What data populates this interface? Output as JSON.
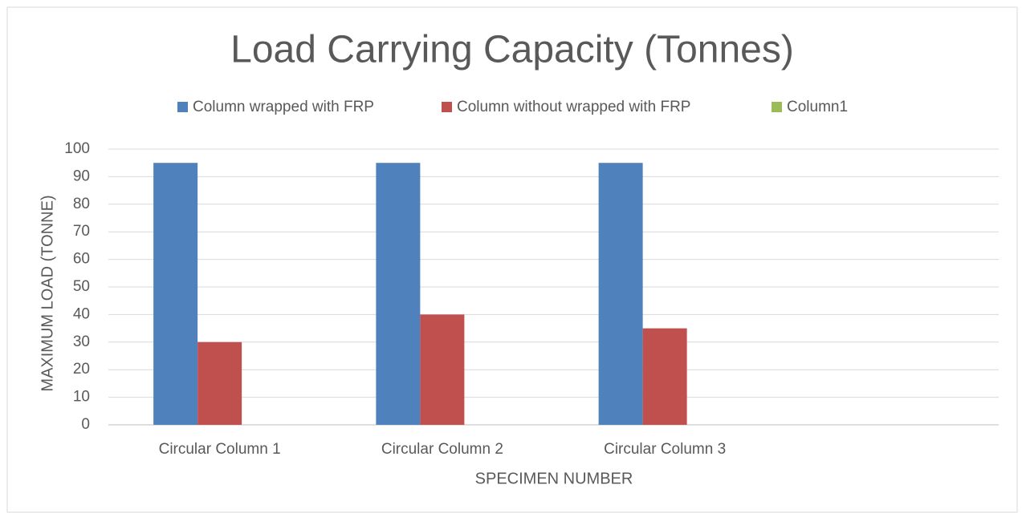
{
  "chart_data": {
    "type": "bar",
    "title": "Load Carrying Capacity (Tonnes)",
    "x_label": "SPECIMEN NUMBER",
    "y_label": "MAXIMUM LOAD (TONNE)",
    "categories": [
      "Circular Column 1",
      "Circular Column 2",
      "Circular Column 3",
      null
    ],
    "series": [
      {
        "name": "Column wrapped with FRP",
        "color": "#4f81bd",
        "values": [
          95,
          95,
          95,
          null
        ]
      },
      {
        "name": "Column without wrapped with FRP",
        "color": "#c0504d",
        "values": [
          30,
          40,
          35,
          null
        ]
      },
      {
        "name": "Column1",
        "color": "#9bbb59",
        "values": [
          null,
          null,
          null,
          null
        ]
      }
    ],
    "ylim": [
      0,
      100
    ],
    "yticks": [
      0,
      10,
      20,
      30,
      40,
      50,
      60,
      70,
      80,
      90,
      100
    ],
    "grid": true,
    "legend": "top"
  }
}
